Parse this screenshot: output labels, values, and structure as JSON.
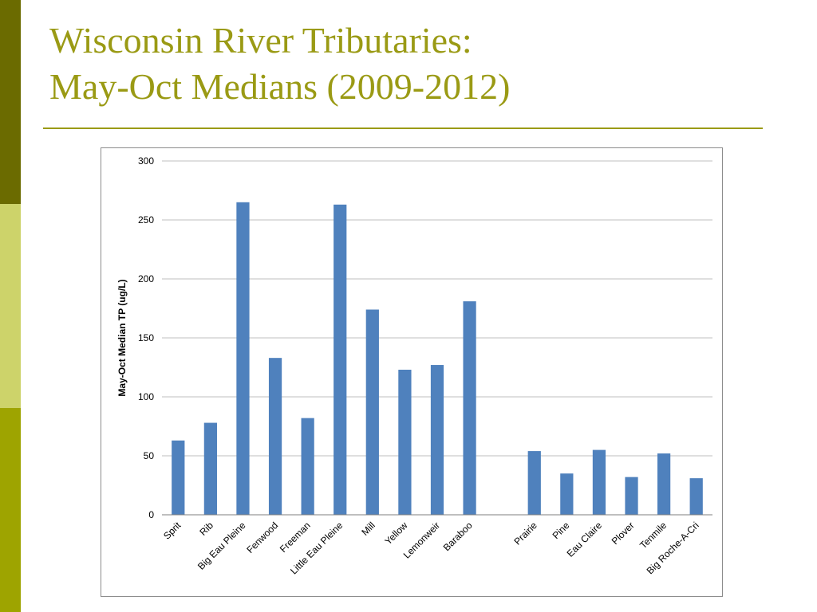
{
  "slide": {
    "title_line1": "Wisconsin River Tributaries:",
    "title_line2": "May-Oct Medians (2009-2012)"
  },
  "colors": {
    "title": "#9a9a14",
    "rule": "#9a9a14",
    "side_dark": "#6b6b00",
    "side_light": "#cdd36a",
    "side_olive": "#9ea400",
    "bar": "#4f81bd",
    "gridline": "#bfbfbf",
    "axis": "#7f7f7f"
  },
  "chart_data": {
    "type": "bar",
    "title": "",
    "xlabel": "",
    "ylabel": "May-Oct Median TP (ug/L)",
    "ylim": [
      0,
      300
    ],
    "yticks": [
      0,
      50,
      100,
      150,
      200,
      250,
      300
    ],
    "grid": true,
    "categories": [
      "Sprit",
      "Rib",
      "Big Eau Pleine",
      "Fenwood",
      "Freeman",
      "Little Eau Pleine",
      "Mill",
      "Yellow",
      "Lemonweir",
      "Baraboo",
      "",
      "Prairie",
      "Pine",
      "Eau Claire",
      "Plover",
      "Tenmile",
      "Big Roche-A-Cri"
    ],
    "values": [
      63,
      78,
      265,
      133,
      82,
      263,
      174,
      123,
      127,
      181,
      null,
      54,
      35,
      55,
      32,
      52,
      31
    ]
  }
}
